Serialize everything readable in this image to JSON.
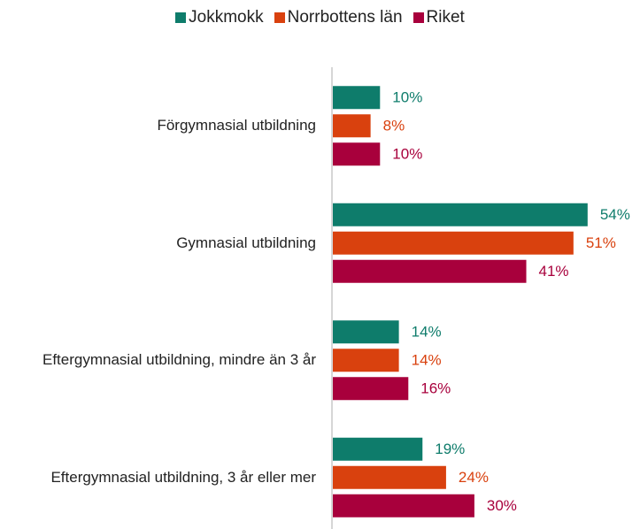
{
  "chart_data": {
    "type": "bar",
    "orientation": "horizontal",
    "categories": [
      "Förgymnasial utbildning",
      "Gymnasial utbildning",
      "Eftergymnasial utbildning, mindre än 3 år",
      "Eftergymnasial utbildning, 3 år eller mer"
    ],
    "series": [
      {
        "name": "Jokkmokk",
        "color": "#0e7c6b",
        "values": [
          10,
          54,
          14,
          19
        ],
        "value_labels": [
          "10%",
          "54%",
          "14%",
          "19%"
        ]
      },
      {
        "name": "Norrbottens län",
        "color": "#d9410e",
        "values": [
          8,
          51,
          14,
          24
        ],
        "value_labels": [
          "8%",
          "51%",
          "14%",
          "24%"
        ]
      },
      {
        "name": "Riket",
        "color": "#a8003c",
        "values": [
          10,
          41,
          16,
          30
        ],
        "value_labels": [
          "10%",
          "41%",
          "16%",
          "30%"
        ]
      }
    ],
    "legend": "top"
  }
}
